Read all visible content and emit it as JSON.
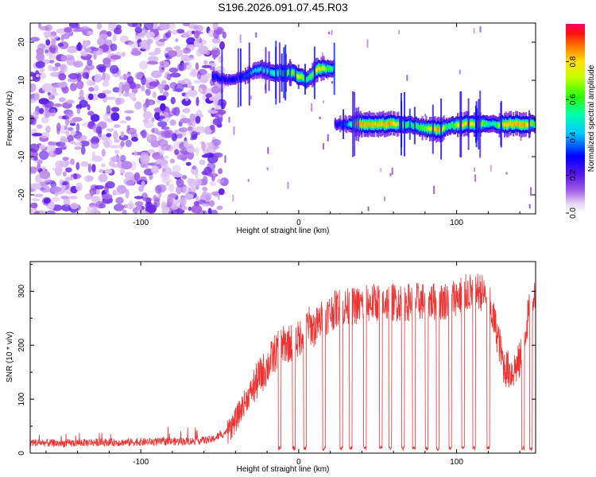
{
  "title": "S196.2026.091.07.45.R03",
  "chart_data": [
    {
      "type": "heatmap",
      "xlabel": "Height of straight line (km)",
      "ylabel": "Frequency (Hz)",
      "xlim": [
        -170,
        150
      ],
      "ylim": [
        -25,
        25
      ],
      "xticks": [
        -100,
        0,
        100
      ],
      "yticks": [
        -20,
        -10,
        0,
        10,
        20
      ],
      "grid": false,
      "noise_region_x": [
        -170,
        -55
      ],
      "ridge": [
        {
          "x": -55,
          "y": 11,
          "amp": 0.35
        },
        {
          "x": -45,
          "y": 10,
          "amp": 0.3
        },
        {
          "x": -35,
          "y": 11,
          "amp": 0.35
        },
        {
          "x": -25,
          "y": 13,
          "amp": 0.5
        },
        {
          "x": -15,
          "y": 12,
          "amp": 0.6
        },
        {
          "x": -5,
          "y": 12,
          "amp": 0.7
        },
        {
          "x": 0,
          "y": 11,
          "amp": 0.85
        },
        {
          "x": 5,
          "y": 10,
          "amp": 0.6
        },
        {
          "x": 12,
          "y": 13,
          "amp": 0.9
        },
        {
          "x": 22,
          "y": 13,
          "amp": 0.55
        },
        {
          "x": 23,
          "y": -1.5,
          "amp": 0.3
        },
        {
          "x": 30,
          "y": -1.5,
          "amp": 0.4
        },
        {
          "x": 38,
          "y": -1.5,
          "amp": 0.95
        },
        {
          "x": 50,
          "y": -1.5,
          "amp": 0.9
        },
        {
          "x": 58,
          "y": -1.5,
          "amp": 0.95
        },
        {
          "x": 70,
          "y": -1.5,
          "amp": 0.6
        },
        {
          "x": 78,
          "y": -2.5,
          "amp": 0.7
        },
        {
          "x": 88,
          "y": -3,
          "amp": 0.95
        },
        {
          "x": 95,
          "y": -2,
          "amp": 0.6
        },
        {
          "x": 103,
          "y": -1.5,
          "amp": 0.9
        },
        {
          "x": 113,
          "y": -1.5,
          "amp": 0.85
        },
        {
          "x": 122,
          "y": -1.5,
          "amp": 0.5
        },
        {
          "x": 130,
          "y": -1.5,
          "amp": 0.9
        },
        {
          "x": 143,
          "y": -1.5,
          "amp": 0.95
        },
        {
          "x": 150,
          "y": -1.5,
          "amp": 0.6
        }
      ],
      "colorbar": {
        "label": "Normalized spectral amplitude",
        "range": [
          0,
          1
        ],
        "ticks": [
          0.0,
          0.2,
          0.4,
          0.6,
          0.8
        ],
        "tick_labels": [
          "0.0",
          "0.2",
          "0.4",
          "0.6",
          "0.8"
        ]
      }
    },
    {
      "type": "line",
      "xlabel": "Height of straight line (km)",
      "ylabel": "SNR (10 * v/v)",
      "xlim": [
        -170,
        150
      ],
      "ylim": [
        0,
        355
      ],
      "xticks": [
        -100,
        0,
        100
      ],
      "yticks": [
        0,
        100,
        200,
        300
      ],
      "grid": false,
      "color": "#ee3333",
      "series": [
        {
          "name": "SNR",
          "x": [
            -170,
            -150,
            -130,
            -110,
            -90,
            -70,
            -55,
            -45,
            -40,
            -35,
            -30,
            -25,
            -20,
            -15,
            -10,
            -5,
            0,
            5,
            10,
            15,
            20,
            25,
            30,
            40,
            50,
            60,
            70,
            80,
            90,
            100,
            110,
            115,
            120,
            125,
            130,
            135,
            140,
            145,
            150
          ],
          "values": [
            20,
            18,
            20,
            20,
            21,
            22,
            25,
            40,
            60,
            90,
            115,
            140,
            160,
            185,
            200,
            205,
            210,
            240,
            230,
            250,
            260,
            270,
            270,
            275,
            280,
            280,
            280,
            282,
            280,
            290,
            300,
            300,
            285,
            230,
            160,
            150,
            170,
            250,
            300
          ]
        }
      ],
      "dropout_x": [
        -12,
        -3,
        4,
        16,
        27,
        33,
        42,
        52,
        58,
        66,
        73,
        81,
        88,
        96,
        104,
        111,
        120,
        142,
        147
      ]
    }
  ]
}
